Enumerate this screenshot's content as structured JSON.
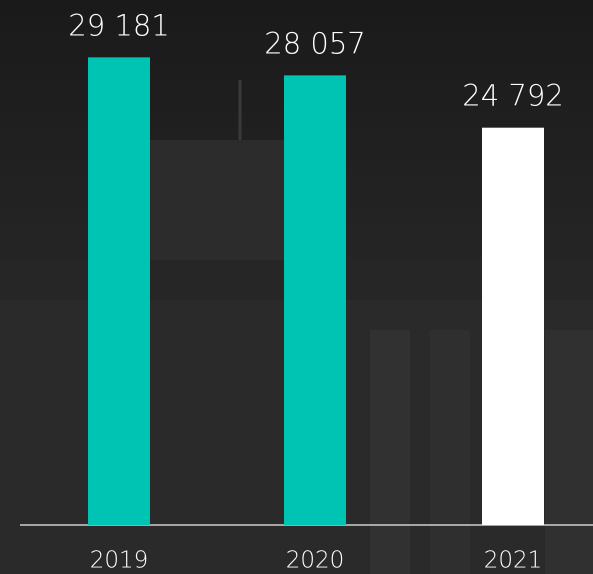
{
  "chart_data": {
    "type": "bar",
    "categories": [
      "2019",
      "2020",
      "2021"
    ],
    "values": [
      29181,
      28057,
      24792
    ],
    "value_labels": [
      "29 181",
      "28 057",
      "24 792"
    ],
    "colors": [
      "#00c4b3",
      "#00c4b3",
      "#ffffff"
    ],
    "ylim": [
      0,
      32760
    ]
  }
}
